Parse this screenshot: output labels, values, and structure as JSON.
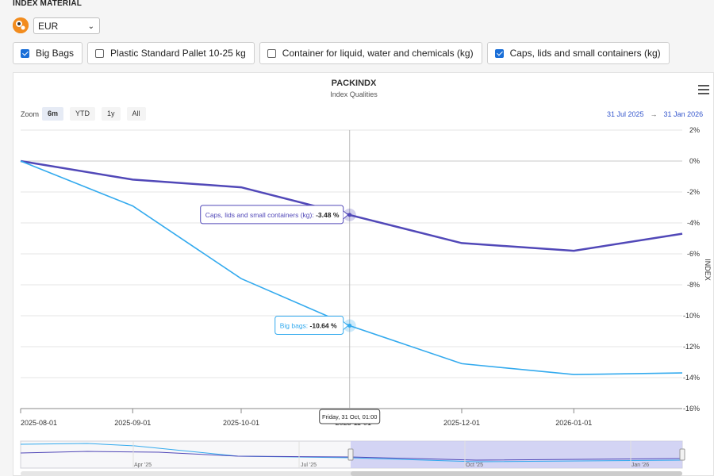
{
  "header": {
    "section_title": "INDEX MATERIAL",
    "currency": "EUR"
  },
  "filters": [
    {
      "label": "Big Bags",
      "checked": true
    },
    {
      "label": "Plastic Standard Pallet 10-25 kg",
      "checked": false
    },
    {
      "label": "Container for liquid, water and chemicals (kg)",
      "checked": false
    },
    {
      "label": "Caps, lids and small containers (kg)",
      "checked": true
    }
  ],
  "toolbar": {
    "zoom_label": "Zoom",
    "zoom_buttons": [
      "6m",
      "YTD",
      "1y",
      "All"
    ],
    "active_zoom": "6m",
    "range_from": "31 Jul 2025",
    "range_arrow": "→",
    "range_to": "31 Jan 2026"
  },
  "chart_data": {
    "type": "line",
    "title": "PACKINDX",
    "subtitle": "Index Qualities",
    "ylabel": "INDEX",
    "y_unit": "%",
    "ylim": [
      -16,
      2
    ],
    "xlim": [
      "2025-08-01",
      "2026-01-31"
    ],
    "y_ticks": [
      "2%",
      "0%",
      "-2%",
      "-4%",
      "-6%",
      "-8%",
      "-10%",
      "-12%",
      "-14%",
      "-16%"
    ],
    "x_ticks": [
      "2025-08-01",
      "2025-09-01",
      "2025-10-01",
      "2025-11-01",
      "2025-12-01",
      "2026-01-01"
    ],
    "colors": {
      "caps": "#5148b8",
      "bigbags": "#33aaee",
      "grid": "#e6e6e6",
      "crosshair": "#bbbbbb"
    },
    "series": [
      {
        "key": "caps",
        "name": "Caps, lids and small containers (kg)",
        "x": [
          "2025-08-01",
          "2025-09-01",
          "2025-10-01",
          "2025-10-31",
          "2025-12-01",
          "2026-01-01",
          "2026-01-31"
        ],
        "values": [
          0,
          -1.2,
          -1.7,
          -3.48,
          -5.3,
          -5.8,
          -4.7
        ]
      },
      {
        "key": "bigbags",
        "name": "Big bags",
        "x": [
          "2025-08-01",
          "2025-09-01",
          "2025-10-01",
          "2025-10-31",
          "2025-12-01",
          "2026-01-01",
          "2026-01-31"
        ],
        "values": [
          0,
          -2.9,
          -7.6,
          -10.64,
          -13.1,
          -13.8,
          -13.7
        ]
      }
    ],
    "tooltip": {
      "date": "Friday, 31 Oct, 01:00",
      "caps_label": "Caps, lids and small containers (kg):",
      "caps_value": "-3.48 %",
      "bigbags_label": "Big bags:",
      "bigbags_value": "-10.64 %"
    },
    "navigator": {
      "ticks": [
        "Apr '25",
        "Jul '25",
        "Oct '25",
        "Jan '26"
      ]
    }
  }
}
